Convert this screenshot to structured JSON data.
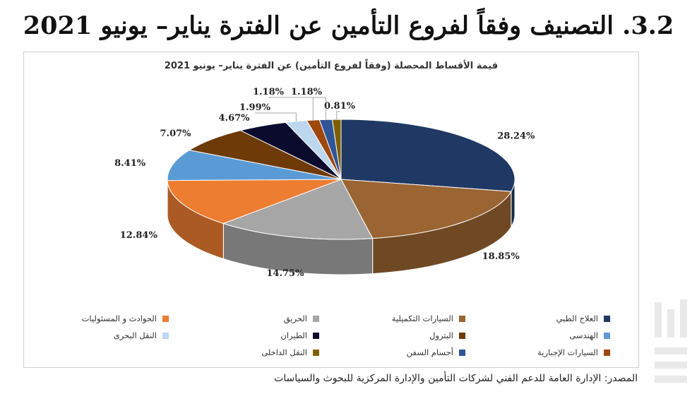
{
  "page": {
    "title": "3.2. التصنيف وفقاً لفروع التأمين عن الفترة يناير– يونيو 2021",
    "source": "المصدر: الإدارة العامة للدعم الفني لشركات التأمين والإدارة المركزية للبحوث والسياسات"
  },
  "chart_data": {
    "type": "pie",
    "title": "قيمة الأقساط المحصلة (وفقاً لفروع التأمين) عن الفترة يناير– يونيو 2021",
    "legend_position": "bottom",
    "slices": [
      {
        "name": "العلاج الطبي",
        "value": 28.24,
        "label": "28.24%",
        "color": "#1f3864"
      },
      {
        "name": "السيارات التكميلية",
        "value": 18.85,
        "label": "18.85%",
        "color": "#9a6532"
      },
      {
        "name": "الحريق",
        "value": 14.75,
        "label": "14.75%",
        "color": "#a6a6a6"
      },
      {
        "name": "الحوادث و المسئوليات",
        "value": 12.84,
        "label": "12.84%",
        "color": "#ed7d31"
      },
      {
        "name": "الهندسى",
        "value": 8.41,
        "label": "8.41%",
        "color": "#5b9bd5"
      },
      {
        "name": "البترول",
        "value": 7.07,
        "label": "7.07%",
        "color": "#6e3a08"
      },
      {
        "name": "الطيران",
        "value": 4.67,
        "label": "4.67%",
        "color": "#0b0b2e"
      },
      {
        "name": "النقل البحرى",
        "value": 1.99,
        "label": "1.99%",
        "color": "#bdd7ee"
      },
      {
        "name": "السيارات الإجبارية",
        "value": 1.18,
        "label": "1.18%",
        "color": "#9e480e"
      },
      {
        "name": "أجسام السفن",
        "value": 1.18,
        "label": "1.18%",
        "color": "#2f5597"
      },
      {
        "name": "النقل الداخلى",
        "value": 0.81,
        "label": "0.81%",
        "color": "#7f6000"
      }
    ]
  }
}
